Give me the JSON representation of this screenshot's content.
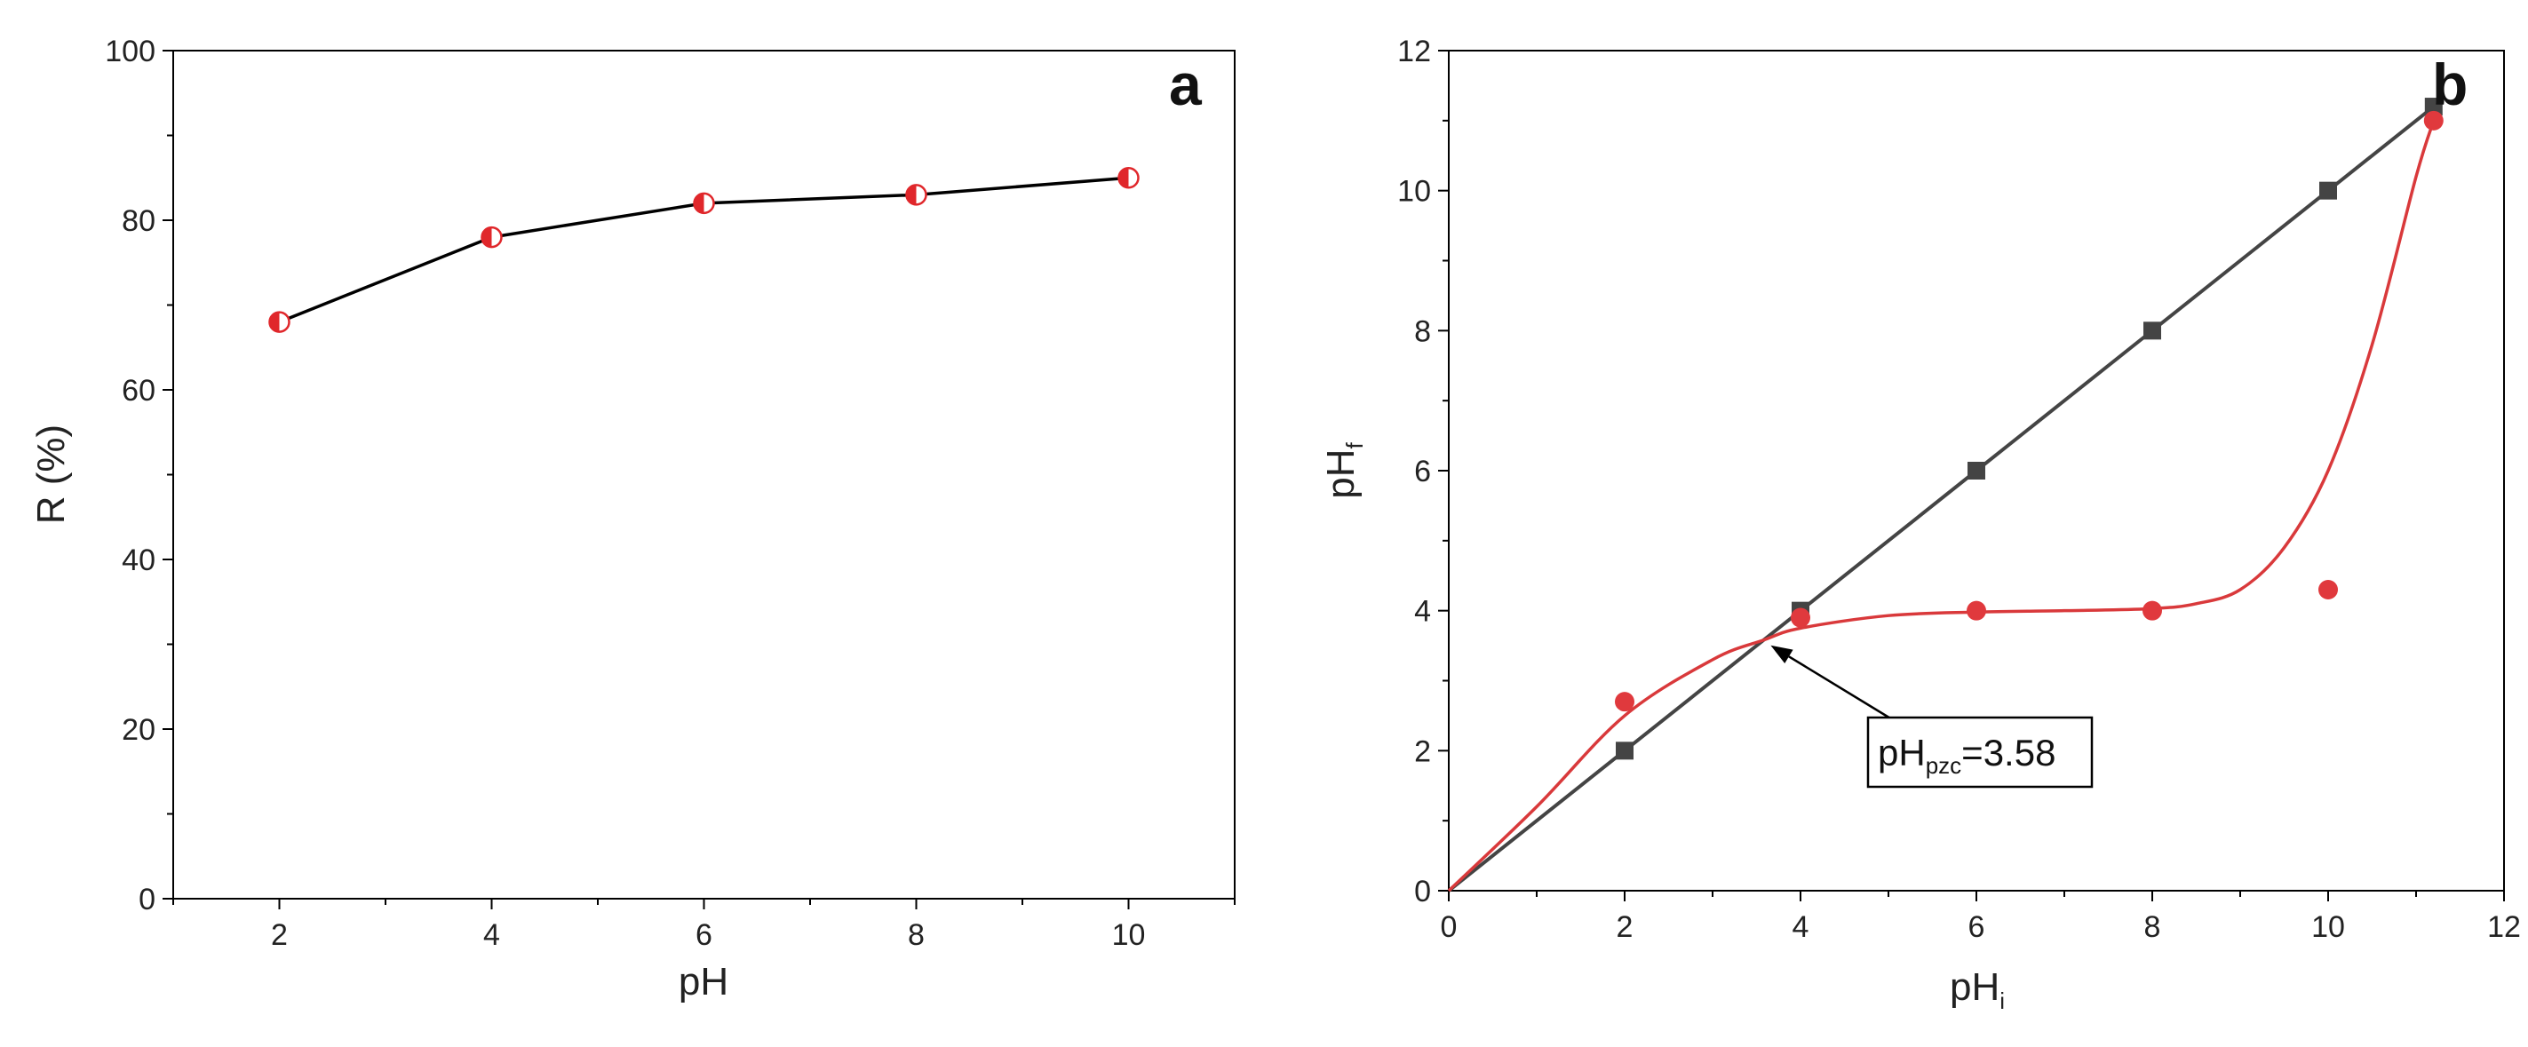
{
  "chart_data": [
    {
      "type": "line",
      "panel_label": "a",
      "xlabel": "pH",
      "ylabel": "R (%)",
      "xlim": [
        1,
        11
      ],
      "ylim": [
        0,
        100
      ],
      "x_ticks": [
        2,
        4,
        6,
        8,
        10
      ],
      "y_ticks": [
        0,
        20,
        40,
        60,
        80,
        100
      ],
      "grid": false,
      "series": [
        {
          "x": [
            2,
            4,
            6,
            8,
            10
          ],
          "y": [
            68,
            78,
            82,
            83,
            85
          ],
          "color": "#e0272b",
          "line_color": "#000000",
          "marker": "half-filled-circle"
        }
      ]
    },
    {
      "type": "line",
      "panel_label": "b",
      "xlabel": "pH",
      "xlabel_sub": "i",
      "ylabel": "pH",
      "ylabel_sub": "f",
      "xlim": [
        0,
        12
      ],
      "ylim": [
        0,
        12
      ],
      "x_ticks": [
        0,
        2,
        4,
        6,
        8,
        10,
        12
      ],
      "y_ticks": [
        0,
        2,
        4,
        6,
        8,
        10,
        12
      ],
      "grid": false,
      "series": [
        {
          "x": [
            0,
            2,
            4,
            6,
            8,
            10,
            11.2
          ],
          "y": [
            0,
            2,
            4,
            6,
            8,
            10,
            11.2
          ],
          "color": "#444444",
          "marker": "square"
        },
        {
          "x": [
            2,
            4,
            6,
            8,
            10,
            11.2
          ],
          "y": [
            2.7,
            3.9,
            4.0,
            4.0,
            4.3,
            11.0
          ],
          "color": "#e0393d",
          "marker": "circle"
        }
      ],
      "fit_curve": {
        "color": "#d9393b",
        "x": [
          0,
          1,
          2,
          3,
          3.58,
          4,
          5,
          6,
          7,
          8,
          8.5,
          9,
          9.5,
          10,
          10.5,
          11,
          11.2
        ],
        "y": [
          0,
          1.2,
          2.5,
          3.3,
          3.58,
          3.75,
          3.93,
          3.98,
          4.0,
          4.03,
          4.1,
          4.3,
          4.9,
          6.0,
          7.8,
          10.2,
          11.0
        ]
      },
      "annotation": {
        "text_main": "pH",
        "text_sub": "pzc",
        "text_value": "=3.58",
        "x": 3.58,
        "y": 3.58
      }
    }
  ]
}
